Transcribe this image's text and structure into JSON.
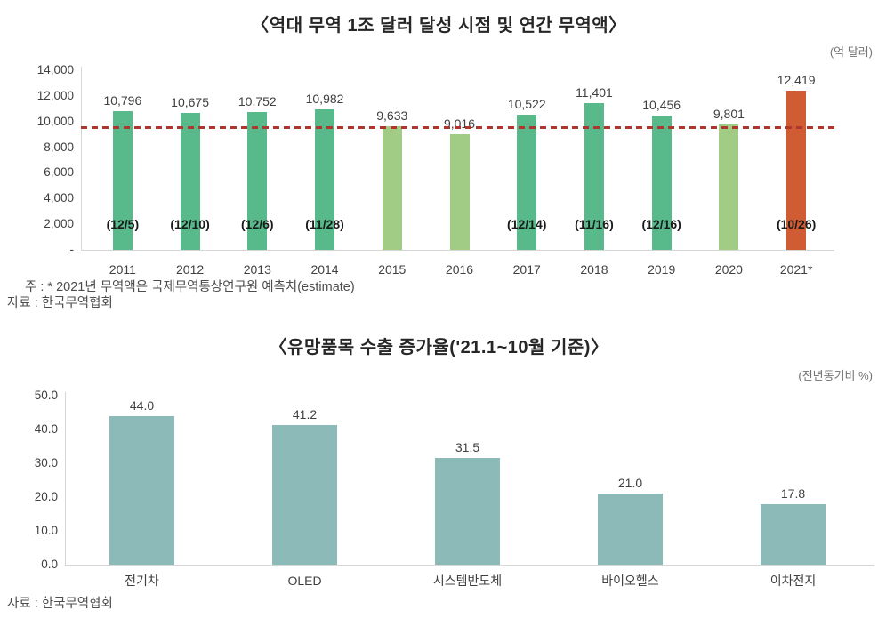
{
  "page": {
    "background": "#ffffff"
  },
  "chart_data": [
    {
      "type": "bar",
      "title": "〈역대 무역 1조 달러 달성 시점 및 연간 무역액〉",
      "unit_label": "(억 달러)",
      "categories": [
        "2011",
        "2012",
        "2013",
        "2014",
        "2015",
        "2016",
        "2017",
        "2018",
        "2019",
        "2020",
        "2021*"
      ],
      "values": [
        10796,
        10675,
        10752,
        10982,
        9633,
        9016,
        10522,
        11401,
        10456,
        9801,
        12419
      ],
      "value_labels": [
        "10,796",
        "10,675",
        "10,752",
        "10,982",
        "9,633",
        "9,016",
        "10,522",
        "11,401",
        "10,456",
        "9,801",
        "12,419"
      ],
      "annotations": [
        "(12/5)",
        "(12/10)",
        "(12/6)",
        "(11/28)",
        "",
        "",
        "(12/14)",
        "(11/16)",
        "(12/16)",
        "",
        "(10/26)"
      ],
      "bar_color_keys": [
        "achieved",
        "achieved",
        "achieved",
        "achieved",
        "missed",
        "missed",
        "achieved",
        "achieved",
        "achieved",
        "missed",
        "estimate"
      ],
      "colors": {
        "achieved": "#58b98b",
        "missed": "#a0cc86",
        "estimate": "#d05c34"
      },
      "ylim": [
        0,
        14000
      ],
      "ytick_values": [
        14000,
        12000,
        10000,
        8000,
        6000,
        4000,
        2000,
        0
      ],
      "ytick_labels": [
        "14,000",
        "12,000",
        "10,000",
        "8,000",
        "6,000",
        "4,000",
        "2,000",
        "-"
      ],
      "reference_line": {
        "value": 9500,
        "color": "#ad372e",
        "style": "dashed"
      },
      "grid": false,
      "legend": "none",
      "note": "주 : * 2021년 무역액은 국제무역통상연구원 예측치(estimate)",
      "source": "자료 : 한국무역협회"
    },
    {
      "type": "bar",
      "title": "〈유망품목 수출 증가율('21.1~10월 기준)〉",
      "unit_label": "(전년동기비 %)",
      "categories": [
        "전기차",
        "OLED",
        "시스템반도체",
        "바이오헬스",
        "이차전지"
      ],
      "values": [
        44.0,
        41.2,
        31.5,
        21.0,
        17.8
      ],
      "value_labels": [
        "44.0",
        "41.2",
        "31.5",
        "21.0",
        "17.8"
      ],
      "bar_color_keys": [
        "default",
        "default",
        "default",
        "default",
        "default"
      ],
      "colors": {
        "default": "#8cbab9"
      },
      "ylim": [
        0,
        50
      ],
      "ytick_values": [
        50,
        40,
        30,
        20,
        10,
        0
      ],
      "ytick_labels": [
        "50.0",
        "40.0",
        "30.0",
        "20.0",
        "10.0",
        "0.0"
      ],
      "grid": false,
      "legend": "none",
      "source": "자료 : 한국무역협회"
    }
  ]
}
